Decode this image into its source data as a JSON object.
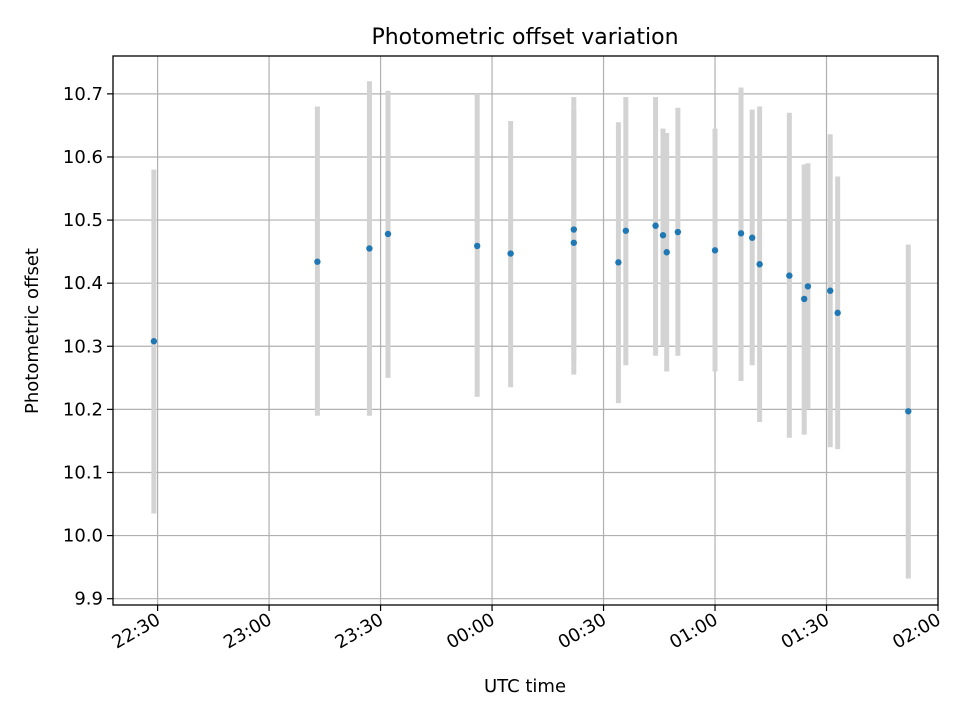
{
  "chart_data": {
    "type": "scatter",
    "title": "Photometric offset variation",
    "xlabel": "UTC time",
    "ylabel": "Photometric offset",
    "x_tick_labels": [
      "22:30",
      "23:00",
      "23:30",
      "00:00",
      "00:30",
      "01:00",
      "01:30",
      "02:00"
    ],
    "y_tick_labels": [
      "9.9",
      "10.0",
      "10.1",
      "10.2",
      "10.3",
      "10.4",
      "10.5",
      "10.6",
      "10.7"
    ],
    "x_ticks": [
      "22:30",
      "23:00",
      "23:30",
      "00:00",
      "00:30",
      "01:00",
      "01:30",
      "02:00"
    ],
    "y_ticks": [
      9.9,
      10.0,
      10.1,
      10.2,
      10.3,
      10.4,
      10.5,
      10.6,
      10.7
    ],
    "xlim": [
      "22:18",
      "02:00"
    ],
    "ylim": [
      9.89,
      10.76
    ],
    "grid": true,
    "point_color": "#1f77b4",
    "errorbar_color": "#d3d3d3",
    "points": [
      {
        "x": "22:29",
        "y": 10.308,
        "ylow": 10.035,
        "yhigh": 10.58
      },
      {
        "x": "23:13",
        "y": 10.434,
        "ylow": 10.19,
        "yhigh": 10.68
      },
      {
        "x": "23:27",
        "y": 10.455,
        "ylow": 10.19,
        "yhigh": 10.72
      },
      {
        "x": "23:32",
        "y": 10.478,
        "ylow": 10.25,
        "yhigh": 10.705
      },
      {
        "x": "23:56",
        "y": 10.459,
        "ylow": 10.22,
        "yhigh": 10.7
      },
      {
        "x": "00:05",
        "y": 10.447,
        "ylow": 10.235,
        "yhigh": 10.657
      },
      {
        "x": "00:22",
        "y": 10.464,
        "ylow": 10.255,
        "yhigh": 10.675
      },
      {
        "x": "00:22",
        "y": 10.485,
        "ylow": 10.275,
        "yhigh": 10.695
      },
      {
        "x": "00:34",
        "y": 10.433,
        "ylow": 10.21,
        "yhigh": 10.655
      },
      {
        "x": "00:36",
        "y": 10.483,
        "ylow": 10.27,
        "yhigh": 10.695
      },
      {
        "x": "00:44",
        "y": 10.491,
        "ylow": 10.285,
        "yhigh": 10.695
      },
      {
        "x": "00:46",
        "y": 10.476,
        "ylow": 10.3,
        "yhigh": 10.645
      },
      {
        "x": "00:47",
        "y": 10.449,
        "ylow": 10.26,
        "yhigh": 10.638
      },
      {
        "x": "00:50",
        "y": 10.481,
        "ylow": 10.285,
        "yhigh": 10.678
      },
      {
        "x": "01:00",
        "y": 10.452,
        "ylow": 10.26,
        "yhigh": 10.645
      },
      {
        "x": "01:07",
        "y": 10.479,
        "ylow": 10.245,
        "yhigh": 10.71
      },
      {
        "x": "01:10",
        "y": 10.472,
        "ylow": 10.27,
        "yhigh": 10.675
      },
      {
        "x": "01:12",
        "y": 10.43,
        "ylow": 10.18,
        "yhigh": 10.68
      },
      {
        "x": "01:20",
        "y": 10.412,
        "ylow": 10.155,
        "yhigh": 10.67
      },
      {
        "x": "01:24",
        "y": 10.375,
        "ylow": 10.16,
        "yhigh": 10.588
      },
      {
        "x": "01:25",
        "y": 10.395,
        "ylow": 10.2,
        "yhigh": 10.59
      },
      {
        "x": "01:31",
        "y": 10.388,
        "ylow": 10.14,
        "yhigh": 10.636
      },
      {
        "x": "01:33",
        "y": 10.353,
        "ylow": 10.137,
        "yhigh": 10.569
      },
      {
        "x": "01:52",
        "y": 10.197,
        "ylow": 9.932,
        "yhigh": 10.461
      }
    ]
  }
}
